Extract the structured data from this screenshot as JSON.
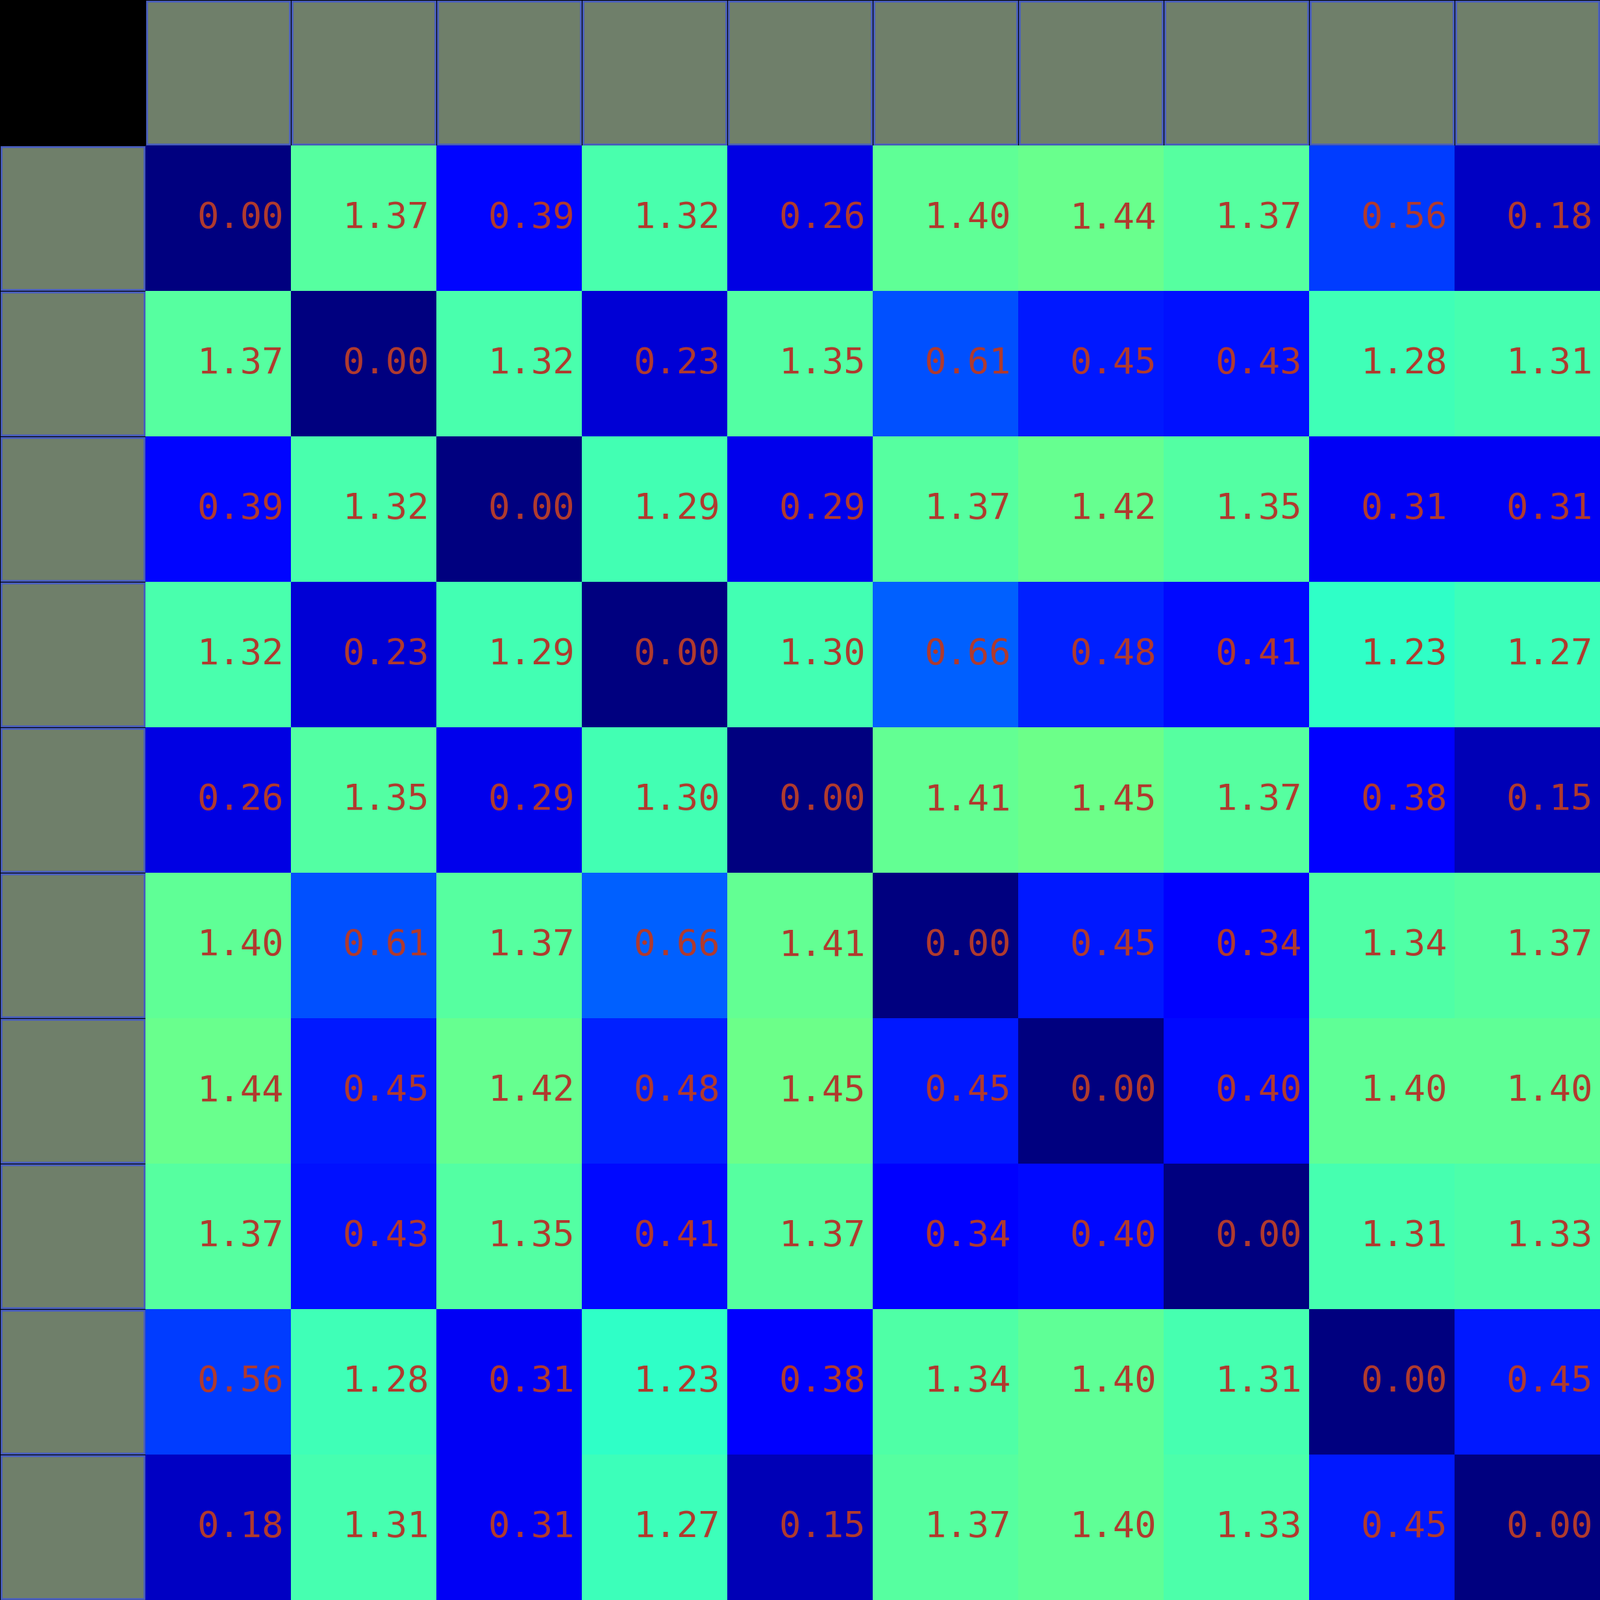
{
  "chart_data": {
    "type": "heatmap",
    "cells": [
      [
        0.0,
        1.37,
        0.39,
        1.32,
        0.26,
        1.4,
        1.44,
        1.37,
        0.56,
        0.18
      ],
      [
        1.37,
        0.0,
        1.32,
        0.23,
        1.35,
        0.61,
        0.45,
        0.43,
        1.28,
        1.31
      ],
      [
        0.39,
        1.32,
        0.0,
        1.29,
        0.29,
        1.37,
        1.42,
        1.35,
        0.31,
        0.31
      ],
      [
        1.32,
        0.23,
        1.29,
        0.0,
        1.3,
        0.66,
        0.48,
        0.41,
        1.23,
        1.27
      ],
      [
        0.26,
        1.35,
        0.29,
        1.3,
        0.0,
        1.41,
        1.45,
        1.37,
        0.38,
        0.15
      ],
      [
        1.4,
        0.61,
        1.37,
        0.66,
        1.41,
        0.0,
        0.45,
        0.34,
        1.34,
        1.37
      ],
      [
        1.44,
        0.45,
        1.42,
        0.48,
        1.45,
        0.45,
        0.0,
        0.4,
        1.4,
        1.4
      ],
      [
        1.37,
        0.43,
        1.35,
        0.41,
        1.37,
        0.34,
        0.4,
        0.0,
        1.31,
        1.33
      ],
      [
        0.56,
        1.28,
        0.31,
        1.23,
        0.38,
        1.34,
        1.4,
        1.31,
        0.0,
        0.45
      ],
      [
        0.18,
        1.31,
        0.31,
        1.27,
        0.15,
        1.37,
        1.4,
        1.33,
        0.45,
        0.0
      ]
    ],
    "value_labels": [
      [
        "0.00",
        "1.37",
        "0.39",
        "1.32",
        "0.26",
        "1.40",
        "1.44",
        "1.37",
        "0.56",
        "0.18"
      ],
      [
        "1.37",
        "0.00",
        "1.32",
        "0.23",
        "1.35",
        "0.61",
        "0.45",
        "0.43",
        "1.28",
        "1.31"
      ],
      [
        "0.39",
        "1.32",
        "0.00",
        "1.29",
        "0.29",
        "1.37",
        "1.42",
        "1.35",
        "0.31",
        "0.31"
      ],
      [
        "1.32",
        "0.23",
        "1.29",
        "0.00",
        "1.30",
        "0.66",
        "0.48",
        "0.41",
        "1.23",
        "1.27"
      ],
      [
        "0.26",
        "1.35",
        "0.29",
        "1.30",
        "0.00",
        "1.41",
        "1.45",
        "1.37",
        "0.38",
        "0.15"
      ],
      [
        "1.40",
        "0.61",
        "1.37",
        "0.66",
        "1.41",
        "0.00",
        "0.45",
        "0.34",
        "1.34",
        "1.37"
      ],
      [
        "1.44",
        "0.45",
        "1.42",
        "0.48",
        "1.45",
        "0.45",
        "0.00",
        "0.40",
        "1.40",
        "1.40"
      ],
      [
        "1.37",
        "0.43",
        "1.35",
        "0.41",
        "1.37",
        "0.34",
        "0.40",
        "0.00",
        "1.31",
        "1.33"
      ],
      [
        "0.56",
        "1.28",
        "0.31",
        "1.23",
        "0.38",
        "1.34",
        "1.40",
        "1.31",
        "0.00",
        "0.45"
      ],
      [
        "0.18",
        "1.31",
        "0.31",
        "1.27",
        "0.15",
        "1.37",
        "1.40",
        "1.33",
        "0.45",
        "0.00"
      ]
    ],
    "color_range": [
      0,
      3
    ],
    "data_labels": true,
    "tick_labels": false
  }
}
